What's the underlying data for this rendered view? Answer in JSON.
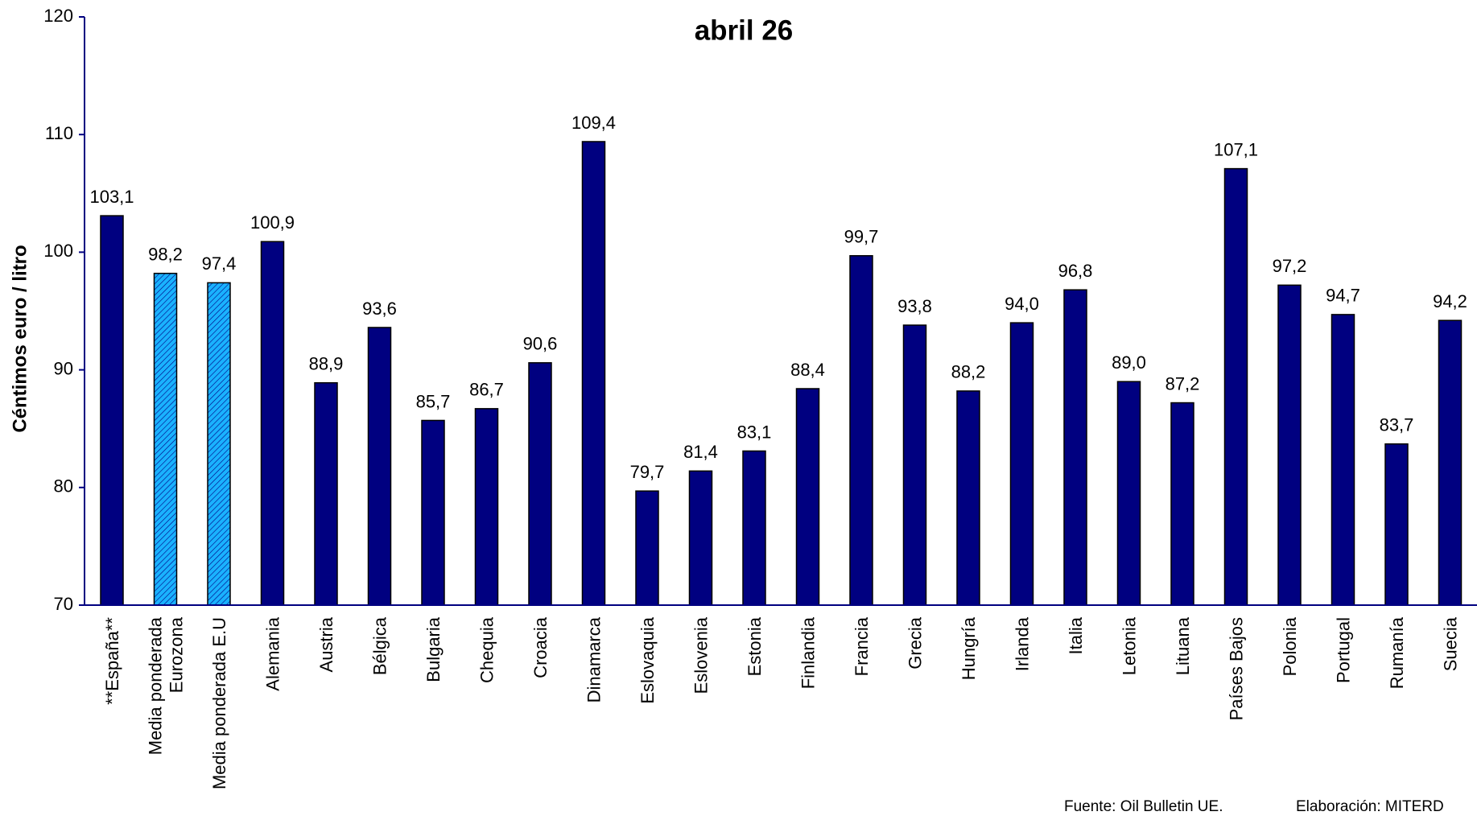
{
  "chart_data": {
    "type": "bar",
    "title": "abril 26",
    "y_label": "Céntimos euro / litro",
    "source": "Fuente: Oil Bulletin UE.",
    "credit": "Elaboración: MITERD",
    "categories": [
      "**España**",
      "Media ponderada\nEurozona",
      "Media ponderada E.U",
      "Alemania",
      "Austria",
      "Bélgica",
      "Bulgaria",
      "Chequia",
      "Croacia",
      "Dinamarca",
      "Eslovaquia",
      "Eslovenia",
      "Estonia",
      "Finlandia",
      "Francia",
      "Grecia",
      "Hungría",
      "Irlanda",
      "Italia",
      "Letonia",
      "Lituana",
      "Países Bajos",
      "Polonia",
      "Portugal",
      "Rumanía",
      "Suecia"
    ],
    "values": [
      103.1,
      98.2,
      97.4,
      100.9,
      88.9,
      93.6,
      85.7,
      86.7,
      90.6,
      109.4,
      79.7,
      81.4,
      83.1,
      88.4,
      99.7,
      93.8,
      88.2,
      94.0,
      96.8,
      89.0,
      87.2,
      107.1,
      97.2,
      94.7,
      83.7,
      94.2
    ],
    "value_labels": [
      "103,1",
      "98,2",
      "97,4",
      "100,9",
      "88,9",
      "93,6",
      "85,7",
      "86,7",
      "90,6",
      "109,4",
      "79,7",
      "81,4",
      "83,1",
      "88,4",
      "99,7",
      "93,8",
      "88,2",
      "94,0",
      "96,8",
      "89,0",
      "87,2",
      "107,1",
      "97,2",
      "94,7",
      "83,7",
      "94,2"
    ],
    "color": "#000080",
    "colors": [
      "#000080",
      "#1ab2ff",
      "#1ab2ff",
      "#000080",
      "#000080",
      "#000080",
      "#000080",
      "#000080",
      "#000080",
      "#000080",
      "#000080",
      "#000080",
      "#000080",
      "#000080",
      "#000080",
      "#000080",
      "#000080",
      "#000080",
      "#000080",
      "#000080",
      "#000080",
      "#000080",
      "#000080",
      "#000080",
      "#000080",
      "#000080"
    ],
    "ylim": [
      70,
      120
    ],
    "yticks": [
      70,
      80,
      90,
      100,
      110,
      120
    ]
  }
}
